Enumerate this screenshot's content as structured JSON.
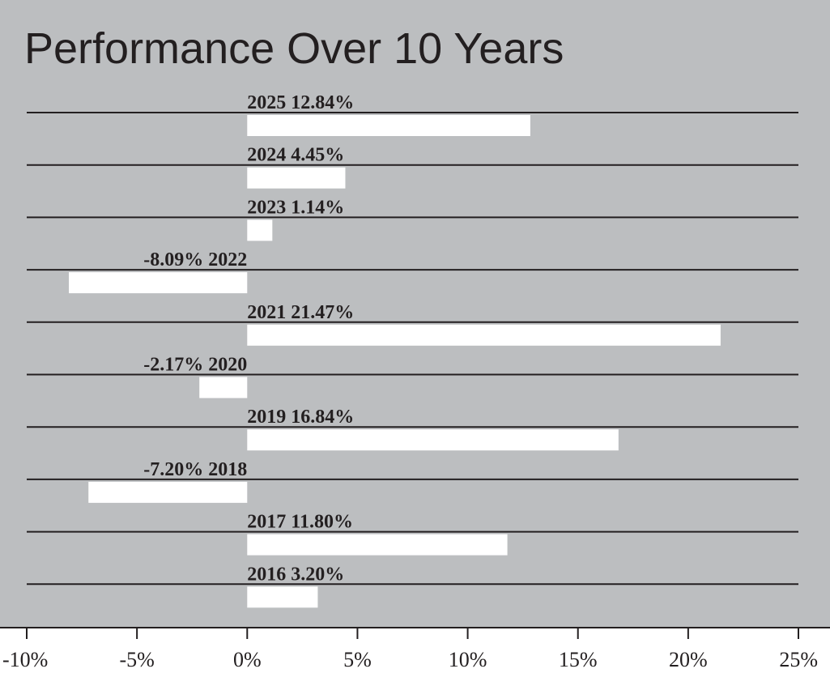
{
  "chart_data": {
    "type": "bar",
    "orientation": "horizontal",
    "title": "Performance Over 10 Years",
    "xlabel": "",
    "ylabel": "",
    "xlim": [
      -10,
      25
    ],
    "x_ticks": [
      -10,
      -5,
      0,
      5,
      10,
      15,
      20,
      25
    ],
    "x_tick_labels": [
      "-10%",
      "-5%",
      "0%",
      "5%",
      "10%",
      "15%",
      "20%",
      "25%"
    ],
    "categories": [
      "2025",
      "2024",
      "2023",
      "2022",
      "2021",
      "2020",
      "2019",
      "2018",
      "2017",
      "2016"
    ],
    "values": [
      12.84,
      4.45,
      1.14,
      -8.09,
      21.47,
      -2.17,
      16.84,
      -7.2,
      11.8,
      3.2
    ],
    "bar_labels": [
      "2025 12.84%",
      "2024 4.45%",
      "2023 1.14%",
      "-8.09% 2022",
      "2021 21.47%",
      "-2.17% 2020",
      "2019 16.84%",
      "-7.20% 2018",
      "2017 11.80%",
      "2016 3.20%"
    ],
    "grid": true,
    "legend": "none",
    "colors": {
      "background": "#bcbec0",
      "bar": "#ffffff",
      "text": "#231f20",
      "lines": "#231f20",
      "axis_strip": "#ffffff"
    }
  }
}
